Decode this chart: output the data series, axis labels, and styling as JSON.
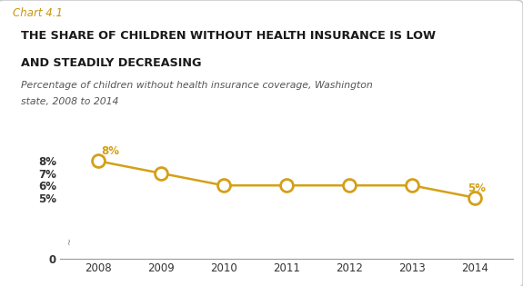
{
  "chart_label": "Chart 4.1",
  "title_line1": "THE SHARE OF CHILDREN WITHOUT HEALTH INSURANCE IS LOW",
  "title_line2": "AND STEADILY DECREASING",
  "subtitle_line1": "Percentage of children without health insurance coverage, Washington",
  "subtitle_line2": "state, 2008 to 2014",
  "years": [
    2008,
    2009,
    2010,
    2011,
    2012,
    2013,
    2014
  ],
  "values": [
    8,
    7,
    6,
    6,
    6,
    6,
    5
  ],
  "line_color": "#D4A017",
  "marker_color": "#D4A017",
  "marker_face": "#FFFFFF",
  "ylim": [
    0,
    9
  ],
  "yticks": [
    0,
    5,
    6,
    7,
    8
  ],
  "ytick_labels": [
    "0",
    "5%",
    "6%",
    "7%",
    "8%"
  ],
  "xlim_left": 2007.4,
  "xlim_right": 2014.6,
  "background_color": "#FFFFFF",
  "box_edge_color": "#CCCCCC",
  "chart_label_color": "#C8960C",
  "title_color": "#1A1A1A",
  "subtitle_color": "#555555",
  "axis_color": "#999999",
  "tick_color": "#333333",
  "annot_color": "#D4A017"
}
